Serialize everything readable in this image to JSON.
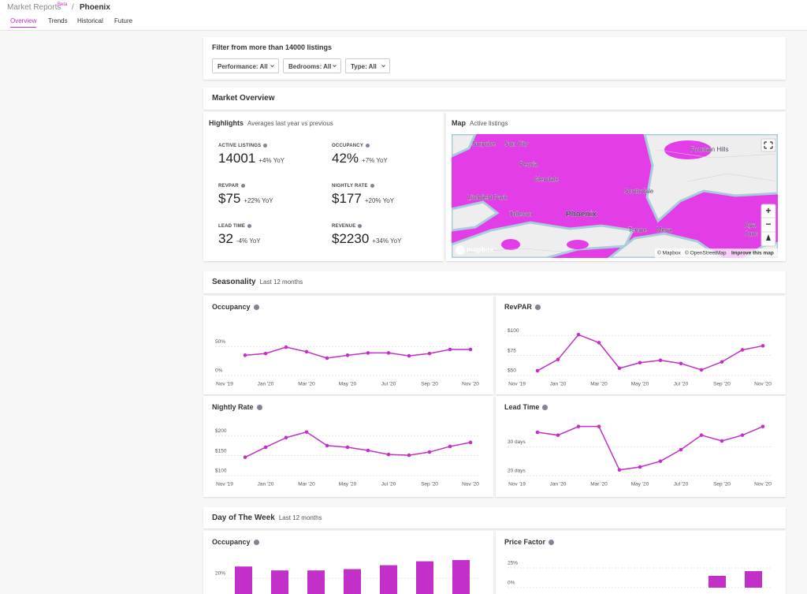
{
  "header": {
    "app": "Market Reports",
    "badge": "Beta",
    "separator": "/",
    "city": "Phoenix"
  },
  "tabs": [
    "Overview",
    "Trends",
    "Historical",
    "Future"
  ],
  "filter": {
    "title": "Filter from more than 14000 listings",
    "buttons": [
      "Performance: All",
      "Bedrooms: All",
      "Type: All"
    ]
  },
  "market_overview": {
    "title": "Market Overview",
    "highlights": {
      "title": "Highlights",
      "subtitle": "Averages last year vs previous",
      "items": [
        {
          "label": "ACTIVE LISTINGS",
          "value": "14001",
          "change": "+4% YoY"
        },
        {
          "label": "OCCUPANCY",
          "value": "42%",
          "change": "+7% YoY"
        },
        {
          "label": "REVPAR",
          "value": "$75",
          "change": "+22% YoY"
        },
        {
          "label": "NIGHTLY RATE",
          "value": "$177",
          "change": "+20% YoY"
        },
        {
          "label": "LEAD TIME",
          "value": "32",
          "change": "-4% YoY"
        },
        {
          "label": "REVENUE",
          "value": "$2230",
          "change": "+34% YoY"
        }
      ]
    },
    "map": {
      "title": "Map",
      "subtitle": "Active listings",
      "places": [
        "Surprise",
        "Sun City",
        "Peoria",
        "Glendale",
        "Litchfield Park",
        "Tolleson",
        "Phoenix",
        "Scottsdale",
        "Tempe",
        "Mesa",
        "Fountain Hills",
        "Apa",
        "Junc"
      ],
      "logo": "mapbox",
      "attribution": [
        "© Mapbox",
        "© OpenStreetMap",
        "Improve this map"
      ],
      "controls": [
        "+",
        "−"
      ]
    }
  },
  "seasonality": {
    "title": "Seasonality",
    "subtitle": "Last 12 months"
  },
  "day_of_week": {
    "title": "Day of The Week",
    "subtitle": "Last 12 months"
  },
  "chart_data": [
    {
      "type": "line",
      "title": "Occupancy",
      "color": "#c22fc9",
      "x": [
        "2019-12",
        "2020-01",
        "2020-02",
        "2020-03",
        "2020-04",
        "2020-05",
        "2020-06",
        "2020-07",
        "2020-08",
        "2020-09",
        "2020-10",
        "2020-11"
      ],
      "values": [
        35,
        38,
        49,
        41,
        30,
        35,
        39,
        39,
        34,
        38,
        45,
        45
      ],
      "xlim": [
        "2019-11",
        "2020-11"
      ],
      "xticks": [
        {
          "value": "2019-11",
          "label": "Nov '19"
        },
        {
          "value": "2020-01",
          "label": "Jan '20"
        },
        {
          "value": "2020-03",
          "label": "Mar '20"
        },
        {
          "value": "2020-05",
          "label": "May '20"
        },
        {
          "value": "2020-07",
          "label": "Jul '20"
        },
        {
          "value": "2020-09",
          "label": "Sep '20"
        },
        {
          "value": "2020-11",
          "label": "Nov '20"
        }
      ],
      "ylim": [
        0,
        90
      ],
      "yticks": [
        {
          "value": 0,
          "label": "0%"
        },
        {
          "value": 50,
          "label": "50%"
        }
      ],
      "grid": true
    },
    {
      "type": "line",
      "title": "RevPAR",
      "color": "#c22fc9",
      "x": [
        "2019-12",
        "2020-01",
        "2020-02",
        "2020-03",
        "2020-04",
        "2020-05",
        "2020-06",
        "2020-07",
        "2020-08",
        "2020-09",
        "2020-10",
        "2020-11"
      ],
      "values": [
        56,
        70,
        101,
        91,
        59,
        66,
        69,
        65,
        57,
        67,
        82,
        87
      ],
      "xlim": [
        "2019-11",
        "2020-11"
      ],
      "xticks": [
        {
          "value": "2019-11",
          "label": "Nov '19"
        },
        {
          "value": "2020-01",
          "label": "Jan '20"
        },
        {
          "value": "2020-03",
          "label": "Mar '20"
        },
        {
          "value": "2020-05",
          "label": "May '20"
        },
        {
          "value": "2020-07",
          "label": "Jul '20"
        },
        {
          "value": "2020-09",
          "label": "Sep '20"
        },
        {
          "value": "2020-11",
          "label": "Nov '20"
        }
      ],
      "ylim": [
        50,
        115
      ],
      "yticks": [
        {
          "value": 50,
          "label": "$50"
        },
        {
          "value": 75,
          "label": "$75"
        },
        {
          "value": 100,
          "label": "$100"
        }
      ],
      "grid": true
    },
    {
      "type": "line",
      "title": "Nightly Rate",
      "color": "#c22fc9",
      "x": [
        "2019-12",
        "2020-01",
        "2020-02",
        "2020-03",
        "2020-04",
        "2020-05",
        "2020-06",
        "2020-07",
        "2020-08",
        "2020-09",
        "2020-10",
        "2020-11"
      ],
      "values": [
        146,
        171,
        195,
        209,
        175,
        171,
        163,
        153,
        151,
        159,
        173,
        183
      ],
      "xlim": [
        "2019-11",
        "2020-11"
      ],
      "xticks": [
        {
          "value": "2019-11",
          "label": "Nov '19"
        },
        {
          "value": "2020-01",
          "label": "Jan '20"
        },
        {
          "value": "2020-03",
          "label": "Mar '20"
        },
        {
          "value": "2020-05",
          "label": "May '20"
        },
        {
          "value": "2020-07",
          "label": "Jul '20"
        },
        {
          "value": "2020-09",
          "label": "Sep '20"
        },
        {
          "value": "2020-11",
          "label": "Nov '20"
        }
      ],
      "ylim": [
        100,
        230
      ],
      "yticks": [
        {
          "value": 100,
          "label": "$100"
        },
        {
          "value": 150,
          "label": "$150"
        },
        {
          "value": 200,
          "label": "$200"
        }
      ],
      "grid": true
    },
    {
      "type": "line",
      "title": "Lead Time",
      "color": "#c22fc9",
      "x": [
        "2019-12",
        "2020-01",
        "2020-02",
        "2020-03",
        "2020-04",
        "2020-05",
        "2020-06",
        "2020-07",
        "2020-08",
        "2020-09",
        "2020-10",
        "2020-11"
      ],
      "values": [
        35,
        34,
        37,
        37,
        22,
        23,
        25,
        29,
        34,
        32,
        34,
        37
      ],
      "xlim": [
        "2019-11",
        "2020-11"
      ],
      "xticks": [
        {
          "value": "2019-11",
          "label": "Nov '19"
        },
        {
          "value": "2020-01",
          "label": "Jan '20"
        },
        {
          "value": "2020-03",
          "label": "Mar '20"
        },
        {
          "value": "2020-05",
          "label": "May '20"
        },
        {
          "value": "2020-07",
          "label": "Jul '20"
        },
        {
          "value": "2020-09",
          "label": "Sep '20"
        },
        {
          "value": "2020-11",
          "label": "Nov '20"
        }
      ],
      "ylim": [
        20,
        38
      ],
      "yticks": [
        {
          "value": 20,
          "label": "20 days"
        },
        {
          "value": 30,
          "label": "30 days"
        }
      ],
      "grid": true
    },
    {
      "type": "bar",
      "title": "Occupancy",
      "color": "#c22fc9",
      "values": [
        29,
        26,
        26,
        27,
        30,
        33,
        34
      ],
      "ylim": [
        0,
        40
      ],
      "yticks": [
        {
          "value": 20,
          "label": "20%"
        }
      ],
      "grid": true
    },
    {
      "type": "bar",
      "title": "Price Factor",
      "color": "#c22fc9",
      "values": [
        0,
        0,
        0,
        0,
        0,
        15,
        21
      ],
      "ylim": [
        0,
        45
      ],
      "yticks": [
        {
          "value": 0,
          "label": "0%"
        },
        {
          "value": 25,
          "label": "25%"
        }
      ],
      "grid": true
    }
  ]
}
